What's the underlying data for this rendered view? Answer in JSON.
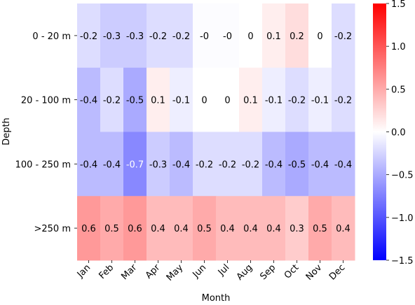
{
  "chart_data": {
    "type": "heatmap",
    "title": "",
    "xlabel": "Month",
    "ylabel": "Depth",
    "x": [
      "Jan",
      "Feb",
      "Mar",
      "Apr",
      "May",
      "Jun",
      "Jul",
      "Aug",
      "Sep",
      "Oct",
      "Nov",
      "Dec"
    ],
    "y": [
      "0 - 20 m",
      "20 - 100 m",
      "100 - 250 m",
      ">250 m"
    ],
    "values": [
      [
        -0.2,
        -0.3,
        -0.3,
        -0.2,
        -0.2,
        -0.02,
        -0.02,
        0.0,
        0.1,
        0.2,
        0.0,
        -0.2
      ],
      [
        -0.4,
        -0.2,
        -0.5,
        0.1,
        -0.1,
        0.0,
        0.0,
        0.1,
        -0.1,
        -0.2,
        -0.1,
        -0.2
      ],
      [
        -0.4,
        -0.4,
        -0.7,
        -0.3,
        -0.4,
        -0.2,
        -0.2,
        -0.2,
        -0.4,
        -0.5,
        -0.4,
        -0.4
      ],
      [
        0.6,
        0.5,
        0.6,
        0.4,
        0.4,
        0.5,
        0.4,
        0.4,
        0.4,
        0.3,
        0.5,
        0.4
      ]
    ],
    "labels": [
      [
        "-0.2",
        "-0.3",
        "-0.3",
        "-0.2",
        "-0.2",
        "-0",
        "-0",
        "0",
        "0.1",
        "0.2",
        "0",
        "-0.2"
      ],
      [
        "-0.4",
        "-0.2",
        "-0.5",
        "0.1",
        "-0.1",
        "0",
        "0",
        "0.1",
        "-0.1",
        "-0.2",
        "-0.1",
        "-0.2"
      ],
      [
        "-0.4",
        "-0.4",
        "-0.7",
        "-0.3",
        "-0.4",
        "-0.2",
        "-0.2",
        "-0.2",
        "-0.4",
        "-0.5",
        "-0.4",
        "-0.4"
      ],
      [
        "0.6",
        "0.5",
        "0.6",
        "0.4",
        "0.4",
        "0.5",
        "0.4",
        "0.4",
        "0.4",
        "0.3",
        "0.5",
        "0.4"
      ]
    ],
    "colormap": "bwr",
    "vmin": -1.5,
    "vmax": 1.5,
    "colorbar_ticks": [
      1.5,
      1.0,
      0.5,
      0.0,
      -0.5,
      -1.0,
      -1.5
    ],
    "colorbar_tick_labels": [
      "1.5",
      "1.0",
      "0.5",
      "0.0",
      "−0.5",
      "−1.0",
      "−1.5"
    ],
    "colors": {
      "low": "#0000ff",
      "mid": "#ffffff",
      "high": "#ff0000"
    }
  }
}
